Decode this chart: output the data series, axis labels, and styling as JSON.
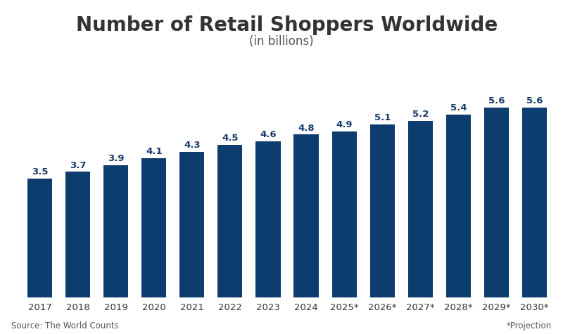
{
  "title": "Number of Retail Shoppers Worldwide",
  "subtitle": "(in billions)",
  "categories": [
    "2017",
    "2018",
    "2019",
    "2020",
    "2021",
    "2022",
    "2023",
    "2024",
    "2025*",
    "2026*",
    "2027*",
    "2028*",
    "2029*",
    "2030*"
  ],
  "values": [
    3.5,
    3.7,
    3.9,
    4.1,
    4.3,
    4.5,
    4.6,
    4.8,
    4.9,
    5.1,
    5.2,
    5.4,
    5.6,
    5.6
  ],
  "bar_color": "#0d3c6e",
  "label_color": "#1a3a6b",
  "title_color": "#333333",
  "subtitle_color": "#555555",
  "background_color": "#ffffff",
  "source_text": "Source: The World Counts",
  "projection_text": "*Projection",
  "ylim": [
    0,
    7.0
  ],
  "title_fontsize": 20,
  "subtitle_fontsize": 12,
  "bar_label_fontsize": 9.5,
  "tick_fontsize": 9.5,
  "source_fontsize": 8.5
}
